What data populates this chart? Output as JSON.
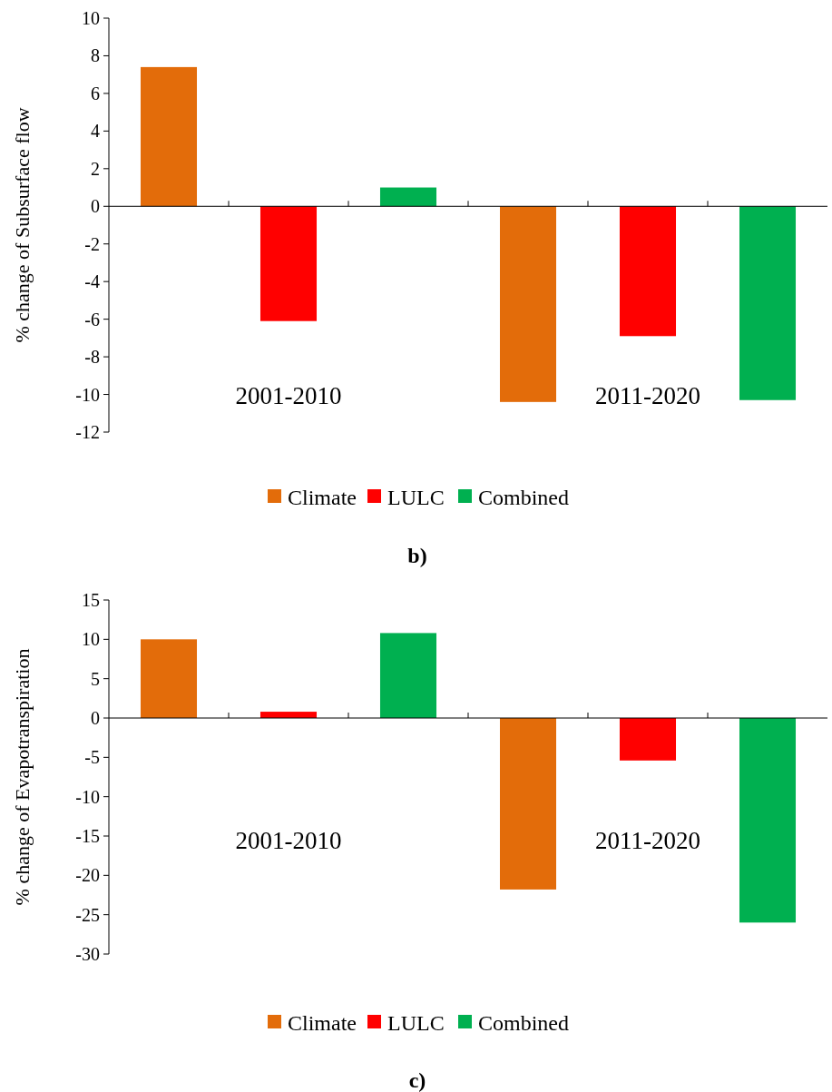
{
  "chart_data": [
    {
      "type": "bar",
      "title": "b)",
      "ylabel": "% change of Subsurface flow",
      "categories": [
        null,
        null,
        null,
        null,
        null,
        null
      ],
      "series": [
        {
          "name": "Climate",
          "color": "#e36c0a",
          "values": [
            7.4,
            null,
            null,
            -10.4,
            null,
            null
          ]
        },
        {
          "name": "LULC",
          "color": "#ff0000",
          "values": [
            null,
            -6.1,
            null,
            null,
            -6.9,
            null
          ]
        },
        {
          "name": "Combined",
          "color": "#00b050",
          "values": [
            null,
            null,
            1.0,
            null,
            null,
            -10.3
          ]
        }
      ],
      "ylim": [
        -12,
        10
      ],
      "yticks": [
        -12,
        -10,
        -8,
        -6,
        -4,
        -2,
        0,
        2,
        4,
        6,
        8,
        10
      ],
      "tick_labels": "y",
      "legend": "bottom",
      "annotations": [
        "2001-2010",
        "2011-2020"
      ]
    },
    {
      "type": "bar",
      "title": "c)",
      "ylabel": "% change of  Evapotranspiration",
      "categories": [
        null,
        null,
        null,
        null,
        null,
        null
      ],
      "series": [
        {
          "name": "Climate",
          "color": "#e36c0a",
          "values": [
            10.0,
            null,
            null,
            -21.8,
            null,
            null
          ]
        },
        {
          "name": "LULC",
          "color": "#ff0000",
          "values": [
            null,
            0.8,
            null,
            null,
            -5.4,
            null
          ]
        },
        {
          "name": "Combined",
          "color": "#00b050",
          "values": [
            null,
            null,
            10.8,
            null,
            null,
            -26.0
          ]
        }
      ],
      "ylim": [
        -30,
        15
      ],
      "yticks": [
        -30,
        -25,
        -20,
        -15,
        -10,
        -5,
        0,
        5,
        10,
        15
      ],
      "tick_labels": "y",
      "legend": "bottom",
      "annotations": [
        "2001-2010",
        "2011-2020"
      ]
    }
  ]
}
